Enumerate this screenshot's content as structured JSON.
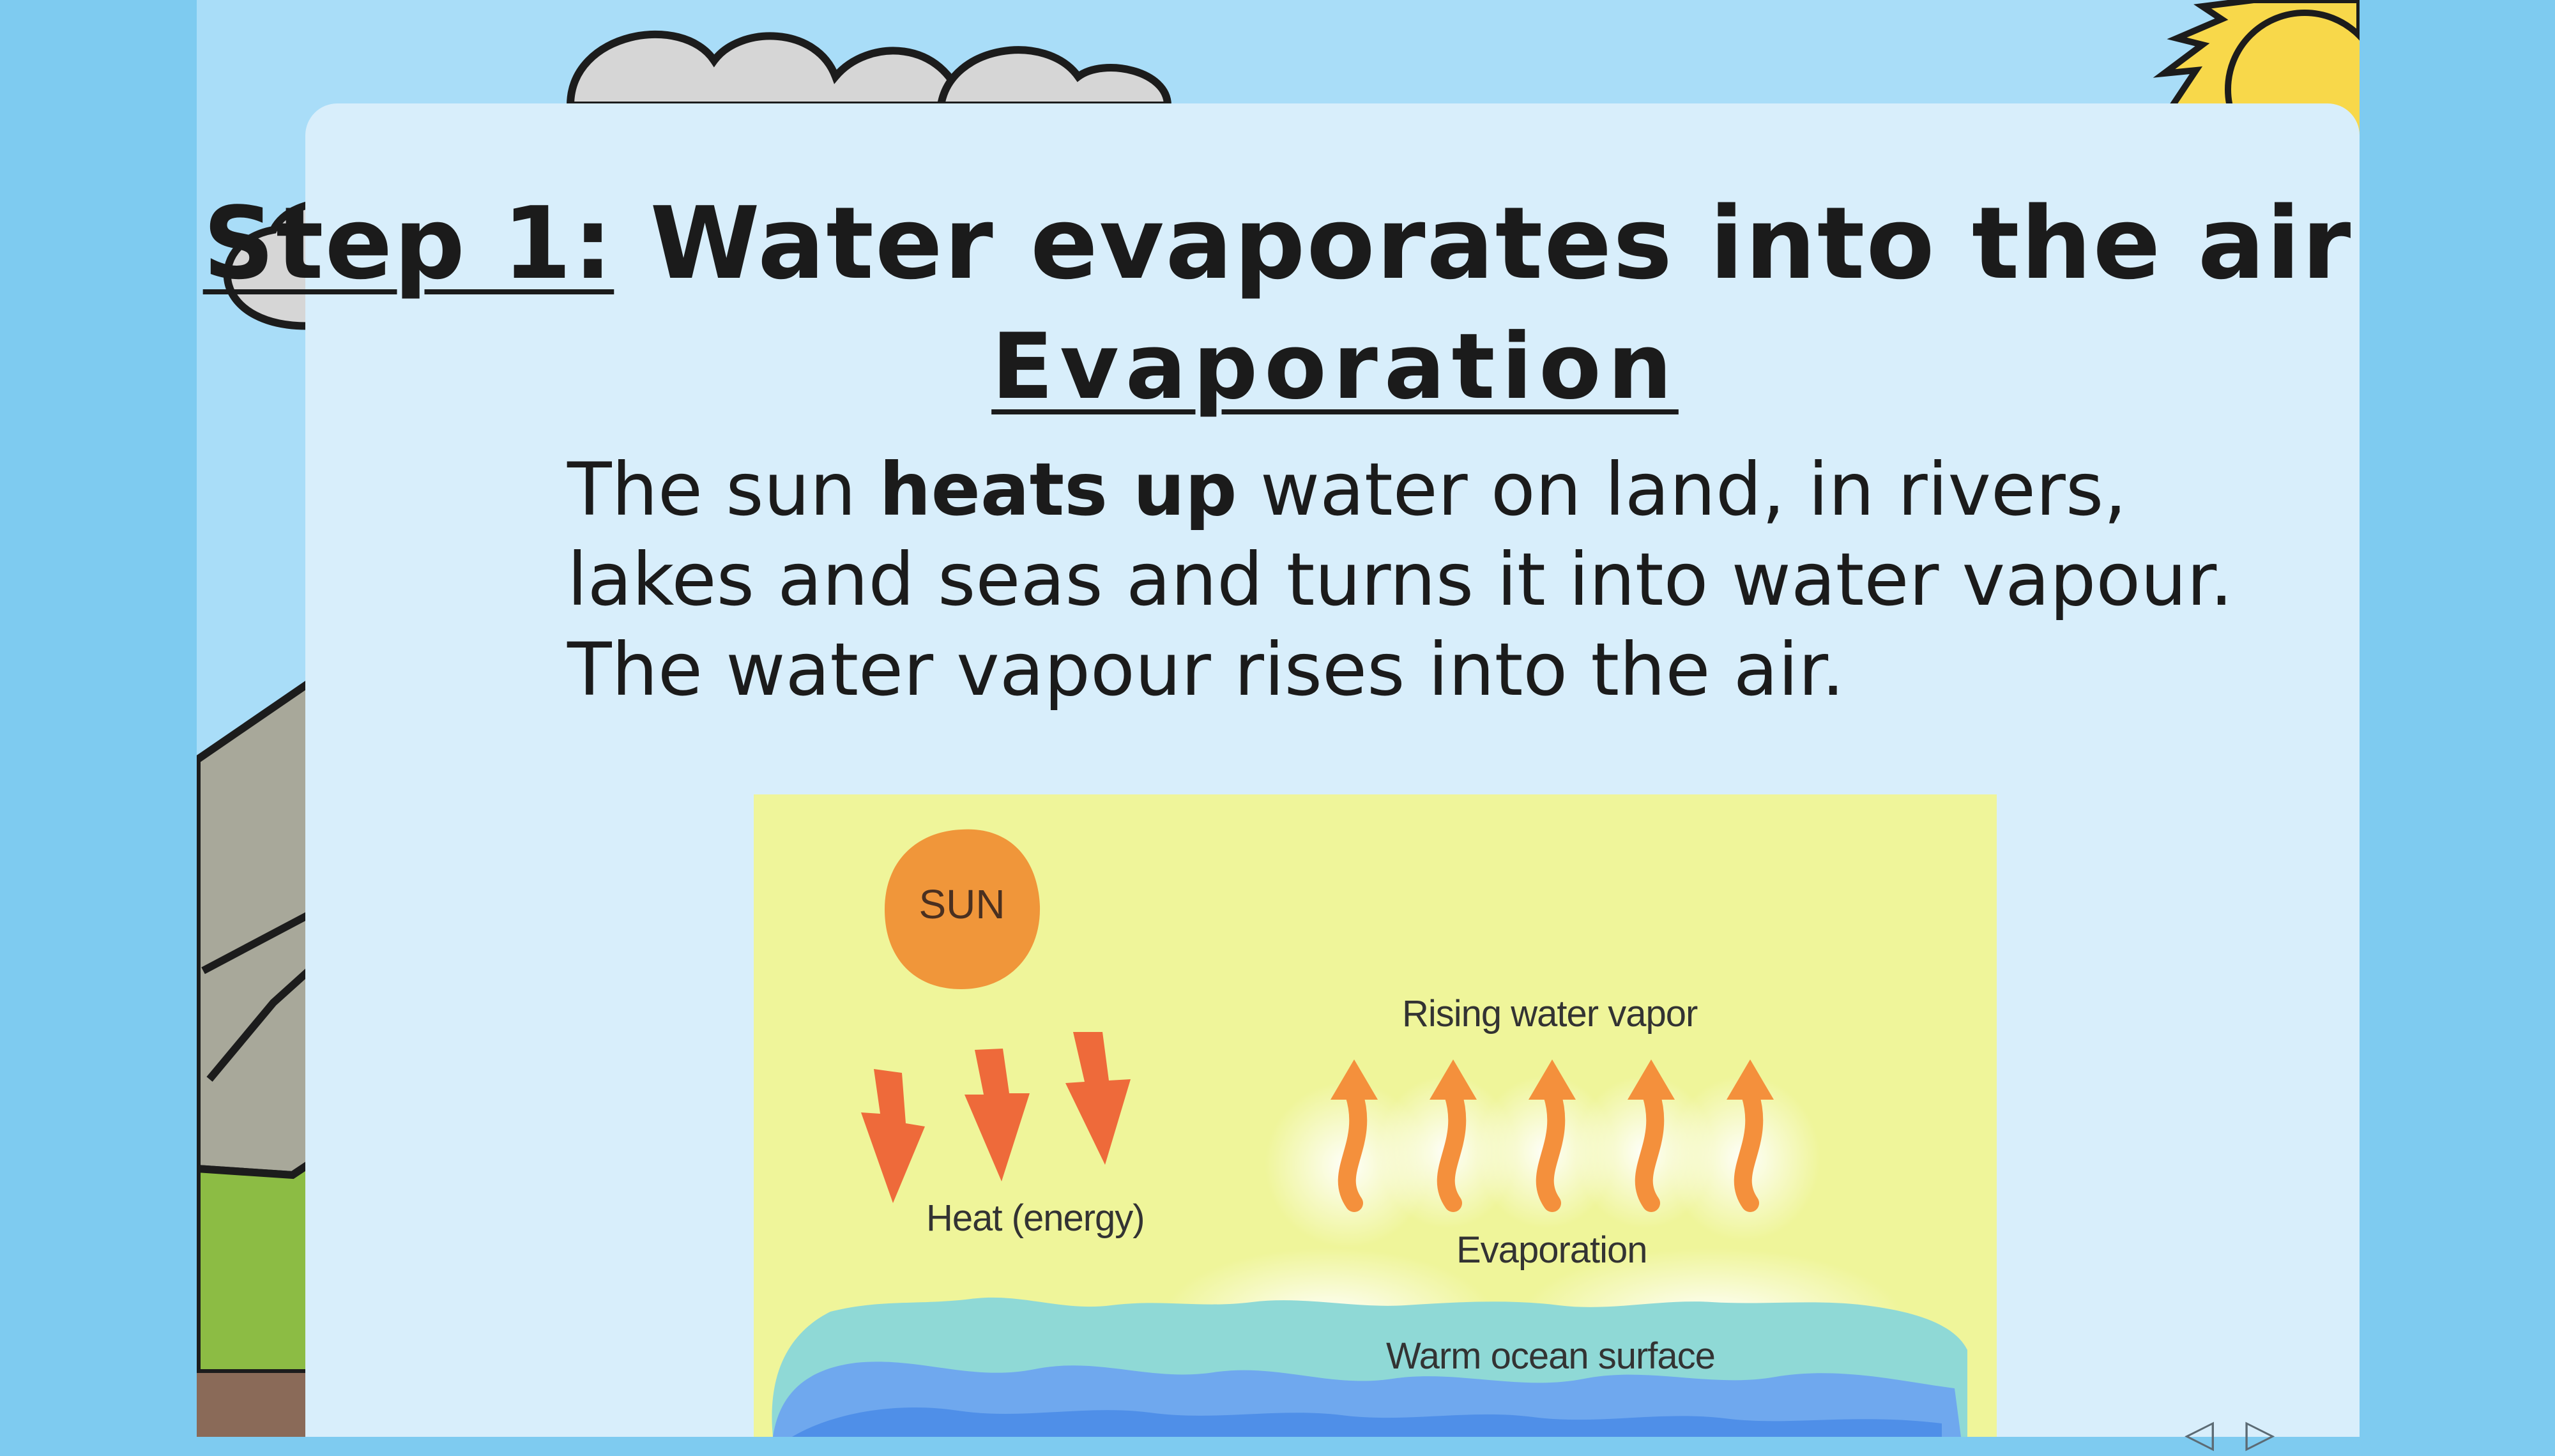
{
  "slide": {
    "title_lead": "Step 1:",
    "title_rest": " Water evaporates into the air",
    "subtitle": "Evaporation",
    "body": {
      "line1_pre": "The sun ",
      "line1_bold": "heats up",
      "line1_post": " water on land, in rivers,",
      "line2": "lakes and seas and turns it into water vapour.",
      "line3": "The water vapour rises into the air."
    }
  },
  "diagram": {
    "sun_label": "SUN",
    "heat_label": "Heat (energy)",
    "rising_label": "Rising water vapor",
    "evaporation_label": "Evaporation",
    "ocean_label": "Warm ocean surface",
    "colors": {
      "background": "#eff59a",
      "sun": "#f0963a",
      "heat_arrow": "#ee6a3a",
      "vapor_arrow": "#f4903c",
      "ocean_light": "#8fd9d6",
      "ocean_deep": "#4f8fe8"
    }
  },
  "background": {
    "colors": {
      "sky": "#a9ddf8",
      "page": "#7ecbf0",
      "sun": "#f8d84a",
      "mountain": "#a8a89a",
      "grass": "#8cbc44"
    }
  }
}
